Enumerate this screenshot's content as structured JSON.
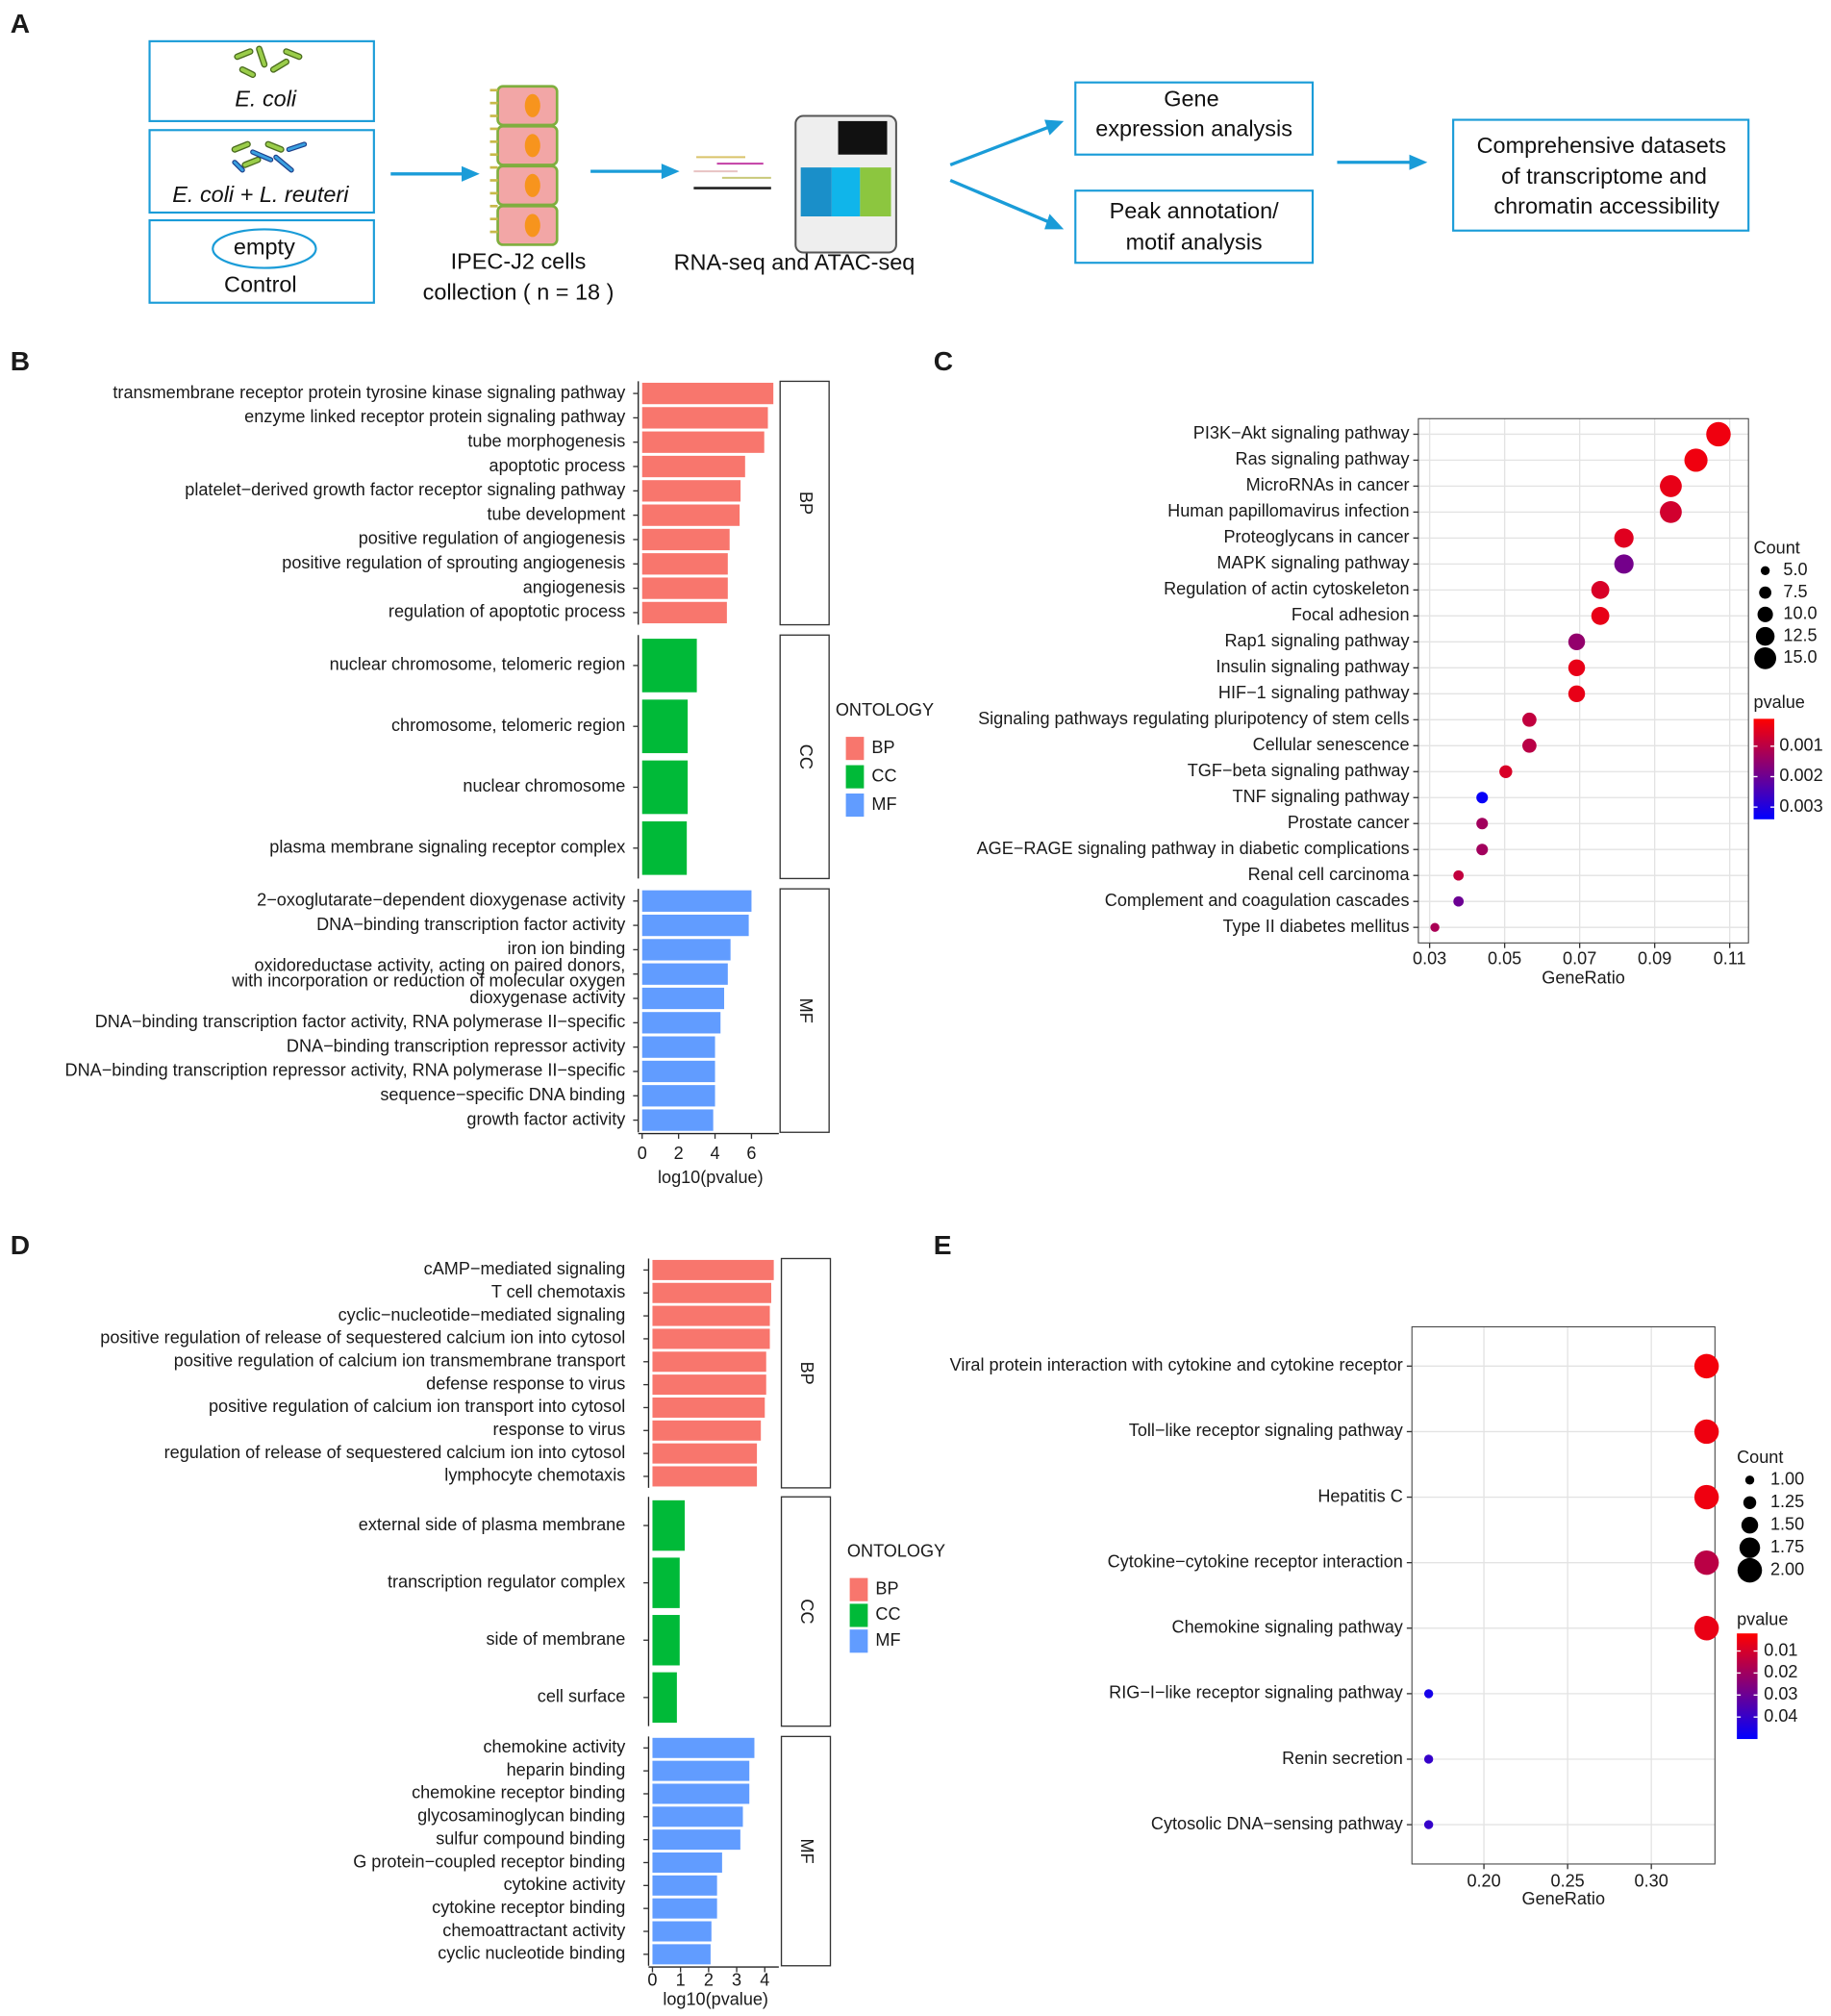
{
  "figure": {
    "panel_labels": [
      "A",
      "B",
      "C",
      "D",
      "E"
    ]
  },
  "diagram": {
    "conditions": [
      "E. coli",
      "E. coli + L. reuteri",
      "Control"
    ],
    "empty_label": "empty",
    "cells": [
      "IPEC-J2 cells",
      "collection ( n = 18 )"
    ],
    "sequencing": "RNA-seq and ATAC-seq",
    "analyses": [
      [
        "Gene",
        "expression analysis"
      ],
      [
        "Peak annotation/",
        "motif analysis"
      ]
    ],
    "output": [
      "Comprehensive datasets",
      "of transcriptome and",
      "chromatin accessibility"
    ]
  },
  "chart_data": [
    {
      "type": "faceted_bar",
      "xlabel": "log10(pvalue)",
      "legend_title": "ONTOLOGY",
      "xlim": [
        0,
        7.5
      ],
      "xticks": [
        0,
        2,
        4,
        6
      ],
      "series": [
        {
          "name": "BP",
          "color": "#f8766d",
          "categories": [
            "transmembrane receptor protein tyrosine kinase signaling pathway",
            "enzyme linked receptor protein signaling pathway",
            "tube morphogenesis",
            "apoptotic process",
            "platelet−derived growth factor receptor signaling pathway",
            "tube development",
            "positive regulation of angiogenesis",
            "positive regulation of sprouting angiogenesis",
            "angiogenesis",
            "regulation of apoptotic process"
          ],
          "values": [
            7.2,
            6.9,
            6.7,
            5.65,
            5.4,
            5.35,
            4.8,
            4.7,
            4.7,
            4.65
          ]
        },
        {
          "name": "CC",
          "color": "#00ba38",
          "categories": [
            "nuclear chromosome, telomeric region",
            "chromosome, telomeric region",
            "nuclear chromosome",
            "plasma membrane signaling receptor complex"
          ],
          "values": [
            3.0,
            2.5,
            2.5,
            2.45
          ]
        },
        {
          "name": "MF",
          "color": "#619cff",
          "categories": [
            "2−oxoglutarate−dependent dioxygenase activity",
            "DNA−binding transcription factor activity",
            "iron ion binding",
            "oxidoreductase activity, acting on paired donors,\nwith incorporation or reduction of molecular oxygen",
            "dioxygenase activity",
            "DNA−binding transcription factor activity, RNA polymerase II−specific",
            "DNA−binding transcription repressor activity",
            "DNA−binding transcription repressor activity, RNA polymerase II−specific",
            "sequence−specific DNA binding",
            "growth factor activity"
          ],
          "values": [
            6.0,
            5.85,
            4.85,
            4.7,
            4.5,
            4.3,
            4.0,
            4.0,
            4.0,
            3.9
          ]
        }
      ]
    },
    {
      "type": "dot",
      "xlabel": "GeneRatio",
      "categories": [
        "PI3K−Akt signaling pathway",
        "Ras signaling pathway",
        "MicroRNAs in cancer",
        "Human papillomavirus infection",
        "Proteoglycans in cancer",
        "MAPK signaling pathway",
        "Regulation of actin cytoskeleton",
        "Focal adhesion",
        "Rap1 signaling pathway",
        "Insulin signaling pathway",
        "HIF−1 signaling pathway",
        "Signaling pathways regulating pluripotency of stem cells",
        "Cellular senescence",
        "TGF−beta signaling pathway",
        "TNF signaling pathway",
        "Prostate cancer",
        "AGE−RAGE signaling pathway in diabetic complications",
        "Renal cell carcinoma",
        "Complement and coagulation cascades",
        "Type II diabetes mellitus"
      ],
      "values": [
        0.107,
        0.101,
        0.0943,
        0.0943,
        0.0818,
        0.0818,
        0.0755,
        0.0755,
        0.0692,
        0.0692,
        0.0692,
        0.0566,
        0.0566,
        0.0503,
        0.044,
        0.044,
        0.044,
        0.0377,
        0.0377,
        0.0314
      ],
      "counts": [
        17,
        16,
        15,
        15,
        13,
        13,
        12,
        12,
        11,
        11,
        11,
        9,
        9,
        8,
        7,
        7,
        7,
        6,
        6,
        5
      ],
      "pvalues": [
        0.0003,
        0.0003,
        0.0004,
        0.0007,
        0.0005,
        0.0019,
        0.0006,
        0.0004,
        0.0015,
        0.0004,
        0.0004,
        0.0009,
        0.001,
        0.0006,
        0.0033,
        0.0013,
        0.0013,
        0.0009,
        0.002,
        0.0012
      ],
      "xlim": [
        0.027,
        0.115
      ],
      "xticks": [
        0.03,
        0.05,
        0.07,
        0.09,
        0.11
      ],
      "size_title": "Count",
      "size_ticks": [
        {
          "value": 5,
          "label": "5.0"
        },
        7.5,
        {
          "value": 10,
          "label": "10.0"
        },
        12.5,
        {
          "value": 15,
          "label": "15.0"
        }
      ],
      "color_title": "pvalue",
      "clim": [
        0.0001,
        0.0034
      ],
      "cticks": [
        0.001,
        0.002,
        0.003
      ],
      "colors": [
        "#ff0000",
        "#0000ff"
      ]
    },
    {
      "type": "faceted_bar",
      "xlabel": "log10(pvalue)",
      "legend_title": "ONTOLOGY",
      "xlim": [
        0,
        4.5
      ],
      "xticks": [
        0,
        1,
        2,
        3,
        4
      ],
      "series": [
        {
          "name": "BP",
          "color": "#f8766d",
          "categories": [
            "cAMP−mediated signaling",
            "T cell chemotaxis",
            "cyclic−nucleotide−mediated signaling",
            "positive regulation of release of sequestered calcium ion into cytosol",
            "positive regulation of calcium ion transmembrane transport",
            "defense response to virus",
            "positive regulation of calcium ion transport into cytosol",
            "response to virus",
            "regulation of release of sequestered calcium ion into cytosol",
            "lymphocyte chemotaxis"
          ],
          "values": [
            4.32,
            4.23,
            4.18,
            4.18,
            4.05,
            4.05,
            4.0,
            3.86,
            3.72,
            3.72
          ]
        },
        {
          "name": "CC",
          "color": "#00ba38",
          "categories": [
            "external side of plasma membrane",
            "transcription regulator complex",
            "side of membrane",
            "cell surface"
          ],
          "values": [
            1.15,
            0.97,
            0.97,
            0.87
          ]
        },
        {
          "name": "MF",
          "color": "#619cff",
          "categories": [
            "chemokine activity",
            "heparin binding",
            "chemokine receptor binding",
            "glycosaminoglycan binding",
            "sulfur compound binding",
            "G protein−coupled receptor binding",
            "cytokine activity",
            "cytokine receptor binding",
            "chemoattractant activity",
            "cyclic nucleotide binding"
          ],
          "values": [
            3.63,
            3.45,
            3.45,
            3.22,
            3.13,
            2.48,
            2.3,
            2.3,
            2.1,
            2.07
          ]
        }
      ]
    },
    {
      "type": "dot",
      "xlabel": "GeneRatio",
      "categories": [
        "Viral protein interaction with cytokine and cytokine receptor",
        "Toll−like receptor signaling pathway",
        "Hepatitis C",
        "Cytokine−cytokine receptor interaction",
        "Chemokine signaling pathway",
        "RIG−I−like receptor signaling pathway",
        "Renin secretion",
        "Cytosolic DNA−sensing pathway"
      ],
      "values": [
        0.333,
        0.333,
        0.333,
        0.333,
        0.333,
        0.167,
        0.167,
        0.167
      ],
      "counts": [
        2,
        2,
        2,
        2,
        2,
        1,
        1,
        1
      ],
      "pvalues": [
        0.004,
        0.005,
        0.005,
        0.015,
        0.006,
        0.046,
        0.04,
        0.04
      ],
      "xlim": [
        0.157,
        0.338
      ],
      "xticks": [
        {
          "value": 0.2,
          "label": "0.20"
        },
        0.25,
        {
          "value": 0.3,
          "label": "0.30"
        }
      ],
      "size_title": "Count",
      "size_ticks": [
        {
          "value": 1,
          "label": "1.00"
        },
        1.25,
        {
          "value": 1.5,
          "label": "1.50"
        },
        1.75,
        {
          "value": 2,
          "label": "2.00"
        }
      ],
      "color_title": "pvalue",
      "clim": [
        0.002,
        0.05
      ],
      "cticks": [
        0.01,
        0.02,
        0.03,
        0.04
      ],
      "colors": [
        "#ff0000",
        "#0000ff"
      ]
    }
  ]
}
